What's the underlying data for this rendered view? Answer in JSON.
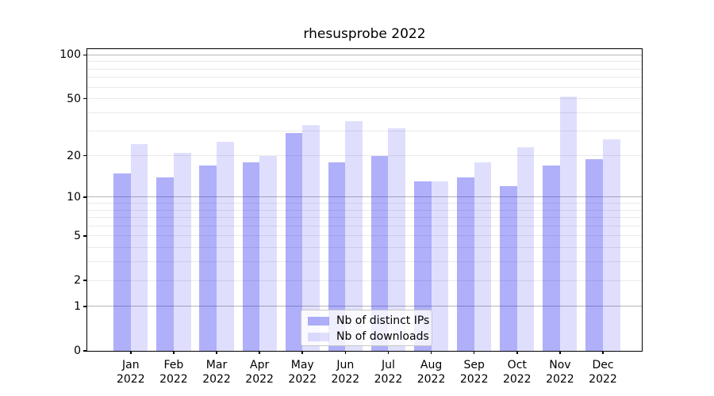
{
  "chart_data": {
    "type": "bar",
    "title": "rhesusprobe 2022",
    "categories": [
      "Jan",
      "Feb",
      "Mar",
      "Apr",
      "May",
      "Jun",
      "Jul",
      "Aug",
      "Sep",
      "Oct",
      "Nov",
      "Dec"
    ],
    "category_year": "2022",
    "series": [
      {
        "name": "Nb of distinct IPs",
        "color": "rgba(15,15,240,0.335)",
        "values": [
          15,
          14,
          17,
          18,
          29,
          18,
          20,
          13,
          14,
          12,
          17,
          19
        ]
      },
      {
        "name": "Nb of downloads",
        "color": "rgba(15,15,240,0.135)",
        "values": [
          24,
          21,
          25,
          20,
          33,
          35,
          31,
          13,
          18,
          23,
          52,
          26
        ]
      }
    ],
    "yscale": "log1p",
    "ylim": [
      0,
      110
    ],
    "yticks": [
      0,
      1,
      2,
      5,
      10,
      20,
      50,
      100
    ],
    "major_ytick_values": [
      1,
      10,
      100
    ],
    "minor_gridline_values": [
      3,
      4,
      6,
      7,
      8,
      9,
      30,
      40,
      60,
      70,
      80,
      90
    ],
    "grid": true,
    "legend_position": "lower center",
    "colors": {
      "major_grid": "#b7b7b7",
      "minor_grid": "#e9e9e9",
      "spine": "#000000",
      "background": "#ffffff"
    }
  }
}
